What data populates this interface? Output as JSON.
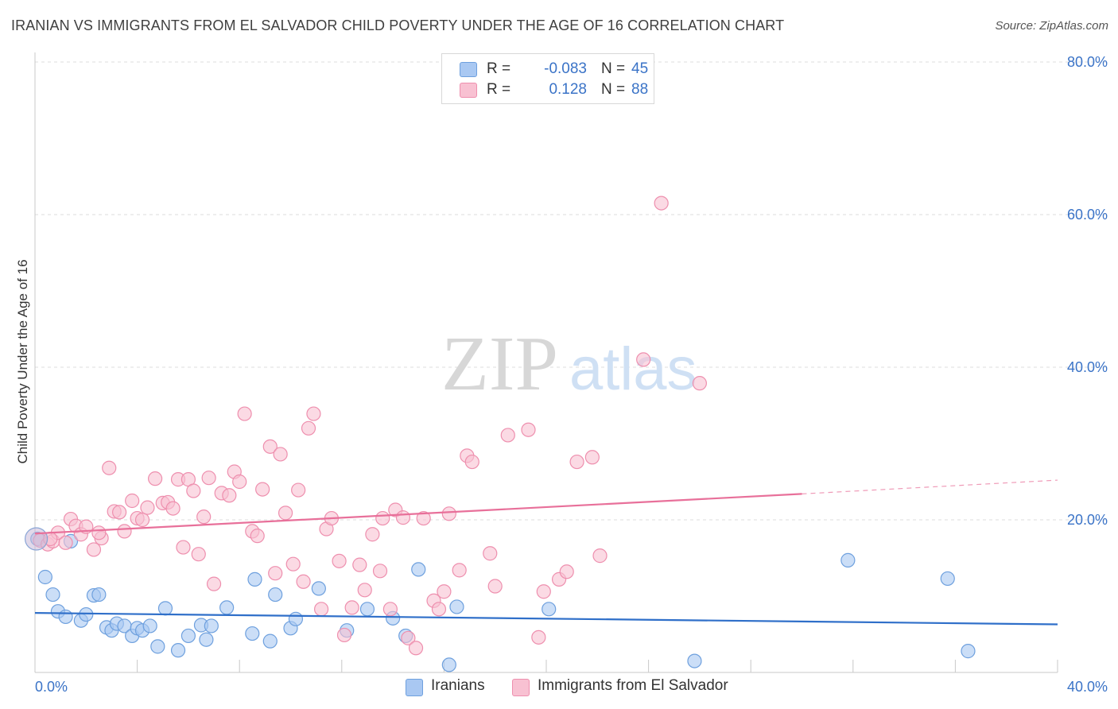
{
  "title": "IRANIAN VS IMMIGRANTS FROM EL SALVADOR CHILD POVERTY UNDER THE AGE OF 16 CORRELATION CHART",
  "source": "Source: ZipAtlas.com",
  "watermark": {
    "zip": "ZIP",
    "atlas": "atlas"
  },
  "legend_top": [
    {
      "r_label": "R =",
      "r_value": "-0.083",
      "n_label": "N =",
      "n_value": "45",
      "color": "#a9c8f2",
      "border": "#6ea0de"
    },
    {
      "r_label": "R =",
      "r_value": "0.128",
      "n_label": "N =",
      "n_value": "88",
      "color": "#f8c1d2",
      "border": "#ee8fae"
    }
  ],
  "legend_bottom": [
    {
      "label": "Iranians",
      "color": "#a9c8f2",
      "border": "#6ea0de"
    },
    {
      "label": "Immigrants from El Salvador",
      "color": "#f8c1d2",
      "border": "#ee8fae"
    }
  ],
  "chart_data": {
    "type": "scatter",
    "title": "IRANIAN VS IMMIGRANTS FROM EL SALVADOR CHILD POVERTY UNDER THE AGE OF 16 CORRELATION CHART",
    "xlabel": "",
    "ylabel": "Child Poverty Under the Age of 16",
    "xlim": [
      0,
      40
    ],
    "ylim": [
      0,
      80
    ],
    "x_tick_labels": [
      {
        "value": 0,
        "label": "0.0%"
      },
      {
        "value": 40,
        "label": "40.0%"
      }
    ],
    "y_tick_labels": [
      {
        "value": 20,
        "label": "20.0%"
      },
      {
        "value": 40,
        "label": "40.0%"
      },
      {
        "value": 60,
        "label": "60.0%"
      },
      {
        "value": 80,
        "label": "80.0%"
      }
    ],
    "grid": true,
    "legend_position": "top-center",
    "series": [
      {
        "name": "Iranians",
        "color": "#6ea0de",
        "fill": "#a9c8f2",
        "trend_color": "#2f6fc9",
        "trend": {
          "x0": 0,
          "y0": 7.8,
          "x1": 40,
          "y1": 6.3
        },
        "points": [
          [
            0.1,
            17.5
          ],
          [
            0.4,
            12.5
          ],
          [
            0.7,
            10.2
          ],
          [
            0.9,
            8.0
          ],
          [
            1.2,
            7.3
          ],
          [
            1.4,
            17.2
          ],
          [
            1.8,
            6.8
          ],
          [
            2.0,
            7.6
          ],
          [
            2.3,
            10.1
          ],
          [
            2.5,
            10.2
          ],
          [
            2.8,
            5.9
          ],
          [
            3.0,
            5.5
          ],
          [
            3.2,
            6.4
          ],
          [
            3.5,
            6.1
          ],
          [
            3.8,
            4.8
          ],
          [
            4.0,
            5.8
          ],
          [
            4.2,
            5.5
          ],
          [
            4.5,
            6.1
          ],
          [
            4.8,
            3.4
          ],
          [
            5.1,
            8.4
          ],
          [
            5.6,
            2.9
          ],
          [
            6.0,
            4.8
          ],
          [
            6.5,
            6.2
          ],
          [
            6.7,
            4.3
          ],
          [
            6.9,
            6.1
          ],
          [
            7.5,
            8.5
          ],
          [
            8.5,
            5.1
          ],
          [
            8.6,
            12.2
          ],
          [
            9.2,
            4.1
          ],
          [
            9.4,
            10.2
          ],
          [
            10.0,
            5.8
          ],
          [
            10.2,
            7.0
          ],
          [
            11.1,
            11.0
          ],
          [
            12.2,
            5.5
          ],
          [
            13.0,
            8.3
          ],
          [
            14.0,
            7.1
          ],
          [
            14.5,
            4.8
          ],
          [
            15.0,
            13.5
          ],
          [
            16.2,
            1.0
          ],
          [
            16.5,
            8.6
          ],
          [
            20.1,
            8.3
          ],
          [
            25.8,
            1.5
          ],
          [
            31.8,
            14.7
          ],
          [
            35.7,
            12.3
          ],
          [
            36.5,
            2.8
          ]
        ]
      },
      {
        "name": "Immigrants from El Salvador",
        "color": "#ee8fae",
        "fill": "#f8c1d2",
        "trend_color": "#e8709a",
        "trend": {
          "x0": 0,
          "y0": 18.2,
          "x1": 30,
          "y1": 23.4
        },
        "trend_extension": {
          "x0": 30,
          "y0": 23.4,
          "x1": 40,
          "y1": 25.2
        },
        "points": [
          [
            0.2,
            17.3
          ],
          [
            0.5,
            16.8
          ],
          [
            0.7,
            17.2
          ],
          [
            0.9,
            18.3
          ],
          [
            1.2,
            17.0
          ],
          [
            1.4,
            20.1
          ],
          [
            1.6,
            19.2
          ],
          [
            1.8,
            18.1
          ],
          [
            2.0,
            19.1
          ],
          [
            2.3,
            16.1
          ],
          [
            2.6,
            17.6
          ],
          [
            2.9,
            26.8
          ],
          [
            3.1,
            21.1
          ],
          [
            3.3,
            21.0
          ],
          [
            3.5,
            18.5
          ],
          [
            3.8,
            22.5
          ],
          [
            4.0,
            20.2
          ],
          [
            4.2,
            20.0
          ],
          [
            4.4,
            21.6
          ],
          [
            4.7,
            25.4
          ],
          [
            5.0,
            22.2
          ],
          [
            5.2,
            22.3
          ],
          [
            5.4,
            21.5
          ],
          [
            5.6,
            25.3
          ],
          [
            5.8,
            16.4
          ],
          [
            6.0,
            25.3
          ],
          [
            6.2,
            23.8
          ],
          [
            6.4,
            15.5
          ],
          [
            6.6,
            20.4
          ],
          [
            6.8,
            25.5
          ],
          [
            7.0,
            11.6
          ],
          [
            7.3,
            23.5
          ],
          [
            7.6,
            23.2
          ],
          [
            7.8,
            26.3
          ],
          [
            8.0,
            25.0
          ],
          [
            8.2,
            33.9
          ],
          [
            8.5,
            18.5
          ],
          [
            8.7,
            17.9
          ],
          [
            8.9,
            24.0
          ],
          [
            9.2,
            29.6
          ],
          [
            9.4,
            13.0
          ],
          [
            9.6,
            28.6
          ],
          [
            9.8,
            20.9
          ],
          [
            10.1,
            14.2
          ],
          [
            10.3,
            23.9
          ],
          [
            10.5,
            11.9
          ],
          [
            10.7,
            32.0
          ],
          [
            10.9,
            33.9
          ],
          [
            11.2,
            8.3
          ],
          [
            11.4,
            18.8
          ],
          [
            11.6,
            20.2
          ],
          [
            11.9,
            14.6
          ],
          [
            12.1,
            4.9
          ],
          [
            12.4,
            8.5
          ],
          [
            12.7,
            14.1
          ],
          [
            12.9,
            10.8
          ],
          [
            13.2,
            18.1
          ],
          [
            13.5,
            13.3
          ],
          [
            13.6,
            20.2
          ],
          [
            13.9,
            8.3
          ],
          [
            14.1,
            21.3
          ],
          [
            14.4,
            20.3
          ],
          [
            14.6,
            4.5
          ],
          [
            14.9,
            3.2
          ],
          [
            15.2,
            20.2
          ],
          [
            15.6,
            9.4
          ],
          [
            15.8,
            8.3
          ],
          [
            16.0,
            10.6
          ],
          [
            16.2,
            20.8
          ],
          [
            16.6,
            13.4
          ],
          [
            16.9,
            28.4
          ],
          [
            17.1,
            27.6
          ],
          [
            17.8,
            15.6
          ],
          [
            18.0,
            11.3
          ],
          [
            18.5,
            31.1
          ],
          [
            19.3,
            31.8
          ],
          [
            19.7,
            4.6
          ],
          [
            19.9,
            10.6
          ],
          [
            20.5,
            12.2
          ],
          [
            20.8,
            13.2
          ],
          [
            21.2,
            27.6
          ],
          [
            21.8,
            28.2
          ],
          [
            22.1,
            15.3
          ],
          [
            23.8,
            41.0
          ],
          [
            24.5,
            61.5
          ],
          [
            26.0,
            37.9
          ],
          [
            0.6,
            17.5
          ],
          [
            2.5,
            18.3
          ]
        ]
      }
    ]
  }
}
